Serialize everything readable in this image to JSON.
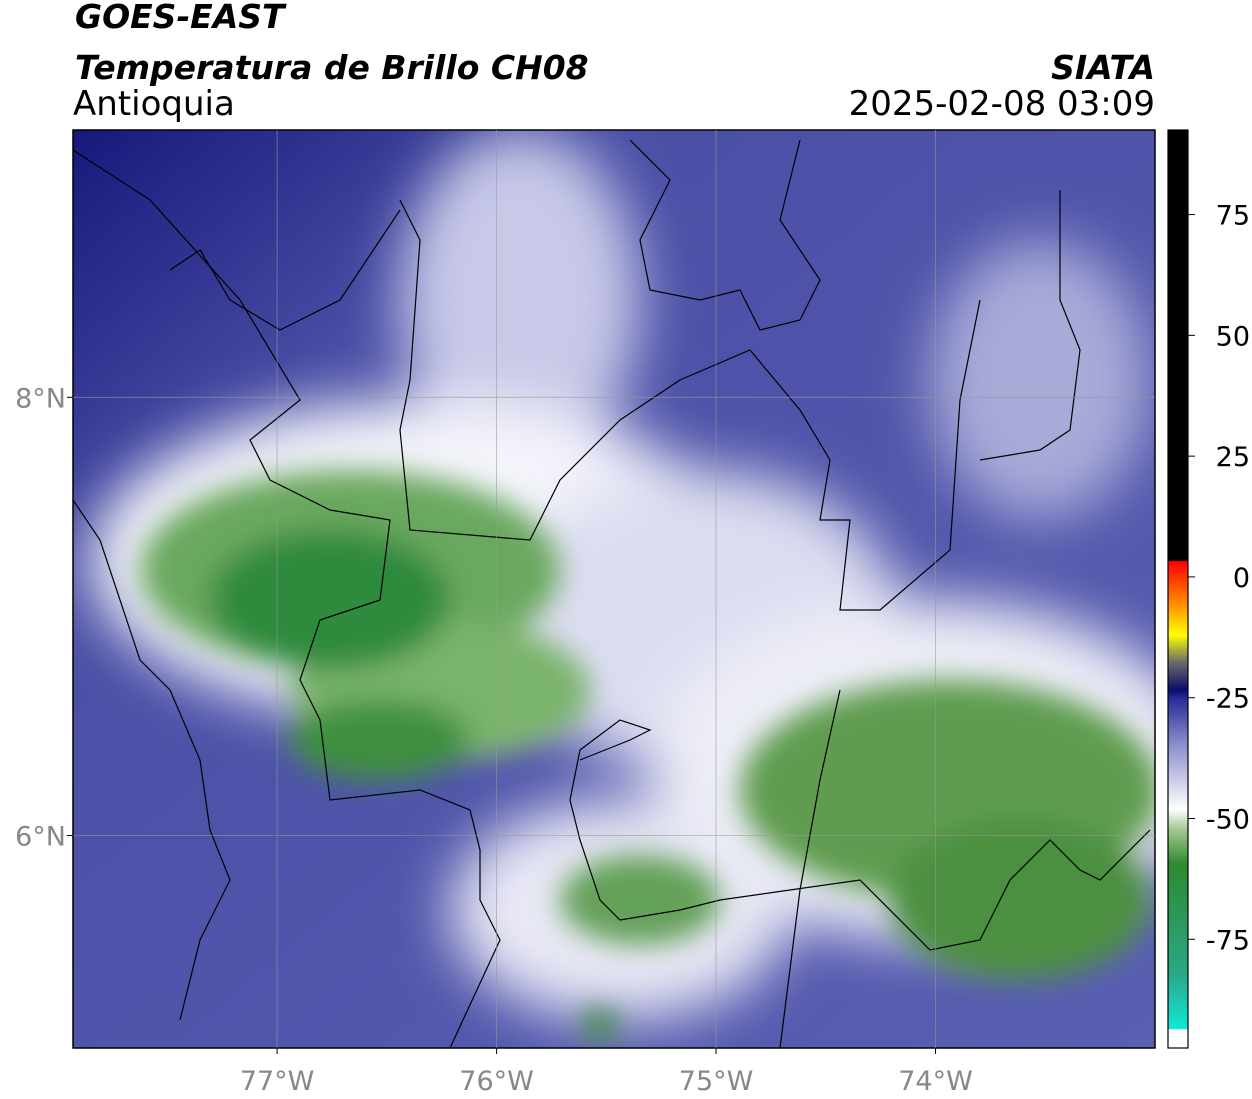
{
  "header": {
    "title": "GOES-EAST",
    "subtitle": "Temperatura de Brillo CH08",
    "region": "Antioquia",
    "source": "SIATA",
    "datetime": "2025-02-08 03:09"
  },
  "map": {
    "xlim": [
      -77.93,
      -73.0
    ],
    "ylim": [
      5.03,
      9.22
    ],
    "grid": true,
    "xticks": [
      {
        "value": -77,
        "label": "77°W"
      },
      {
        "value": -76,
        "label": "76°W"
      },
      {
        "value": -75,
        "label": "75°W"
      },
      {
        "value": -74,
        "label": "74°W"
      }
    ],
    "yticks": [
      {
        "value": 8,
        "label": "8°N"
      },
      {
        "value": 6,
        "label": "6°N"
      }
    ]
  },
  "colorbar": {
    "lim": [
      -97.5,
      92.5
    ],
    "ticks": [
      75,
      50,
      25,
      0,
      -25,
      -50,
      -75
    ]
  }
}
